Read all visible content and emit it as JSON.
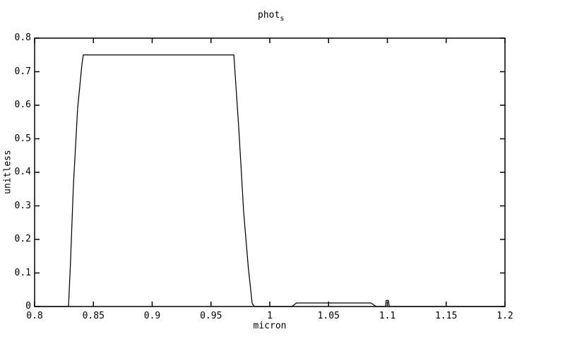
{
  "title": {
    "text": "phot",
    "subscript": "s"
  },
  "chart_data": {
    "type": "line",
    "title": "phot_s",
    "xlabel": "micron",
    "ylabel": "unitless",
    "xlim": [
      0.8,
      1.2
    ],
    "ylim": [
      0.0,
      0.8
    ],
    "grid": false,
    "frame": "full-box-inward-ticks",
    "legend": "none",
    "line_color": "#000000",
    "background_color": "#ffffff",
    "x_ticks": {
      "values": [
        0.8,
        0.85,
        0.9,
        0.95,
        1.0,
        1.05,
        1.1,
        1.15,
        1.2
      ],
      "labels": [
        "0.8",
        "0.85",
        "0.9",
        "0.95",
        "1",
        "1.05",
        "1.1",
        "1.15",
        "1.2"
      ]
    },
    "y_ticks": {
      "values": [
        0,
        0.1,
        0.2,
        0.3,
        0.4,
        0.5,
        0.6,
        0.7,
        0.8
      ],
      "labels": [
        "0",
        "0.1",
        "0.2",
        "0.3",
        "0.4",
        "0.5",
        "0.6",
        "0.7",
        "0.8"
      ]
    },
    "series": [
      {
        "name": "phot_s",
        "points": [
          [
            0.8,
            0
          ],
          [
            0.8288,
            0
          ],
          [
            0.8304,
            0.12
          ],
          [
            0.833,
            0.36
          ],
          [
            0.8366,
            0.59
          ],
          [
            0.8402,
            0.72
          ],
          [
            0.8414,
            0.75
          ],
          [
            0.9694,
            0.75
          ],
          [
            0.9736,
            0.535
          ],
          [
            0.9778,
            0.282
          ],
          [
            0.9818,
            0.114
          ],
          [
            0.985,
            0.01
          ],
          [
            0.9868,
            0
          ],
          [
            1.019,
            0
          ],
          [
            1.0225,
            0.0105
          ],
          [
            1.086,
            0.0105
          ],
          [
            1.0905,
            0
          ],
          [
            1.0984,
            0
          ],
          [
            1.099,
            0.018
          ],
          [
            1.1008,
            0.018
          ],
          [
            1.1017,
            0
          ],
          [
            1.2,
            0
          ]
        ]
      }
    ]
  }
}
